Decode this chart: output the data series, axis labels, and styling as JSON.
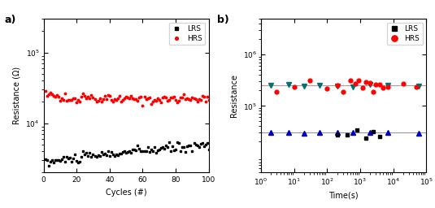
{
  "panel_a": {
    "xlabel": "Cycles (#)",
    "ylabel": "Resistance (Ω)",
    "xlim": [
      0,
      100
    ],
    "ylim": [
      2000,
      300000
    ],
    "yticks": [
      10000.0,
      100000.0
    ],
    "lrs_start": 2800,
    "lrs_end": 5000,
    "hrs_mean": 22000,
    "hrs_color": "#ff0000",
    "lrs_color": "#000000",
    "n_cycles": 100,
    "label_a": "a)"
  },
  "panel_b": {
    "xlabel": "Time(s)",
    "ylabel": "Resistance",
    "xlim": [
      1,
      100000.0
    ],
    "ylim": [
      5000.0,
      5000000.0
    ],
    "yticks": [
      100000.0,
      1000000.0
    ],
    "hrs_line_value": 250000,
    "lrs_line_value": 30000,
    "hrs_color": "#ff0000",
    "lrs_color": "#000000",
    "teal_color": "#007070",
    "blue_color": "#0000bb",
    "label_b": "b)"
  }
}
